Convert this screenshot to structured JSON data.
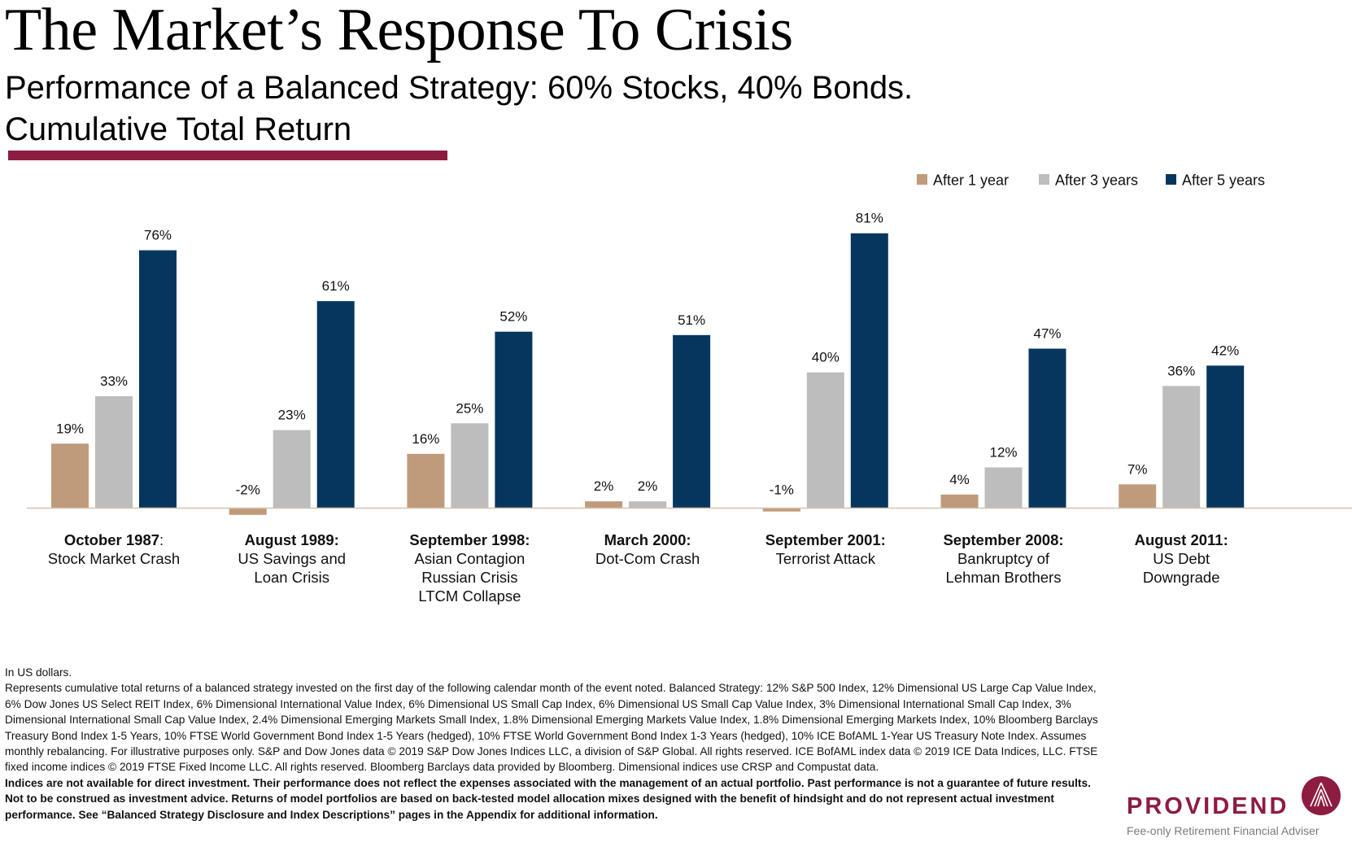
{
  "header": {
    "title": "The Market’s Response To Crisis",
    "subtitle_line1": "Performance of a Balanced Strategy: 60% Stocks, 40% Bonds.",
    "subtitle_line2": "Cumulative Total Return",
    "accent_color": "#8d1c40"
  },
  "chart_data": {
    "type": "bar",
    "categories": [
      {
        "bold": "October 1987",
        "bold_suffix": ":",
        "lines": [
          "Stock Market Crash"
        ]
      },
      {
        "bold": "August 1989:",
        "bold_suffix": "",
        "lines": [
          "US Savings and",
          "Loan Crisis"
        ]
      },
      {
        "bold": "September 1998:",
        "bold_suffix": "",
        "lines": [
          "Asian Contagion",
          "Russian Crisis",
          "LTCM Collapse"
        ]
      },
      {
        "bold": "March 2000:",
        "bold_suffix": "",
        "lines": [
          "Dot-Com Crash"
        ]
      },
      {
        "bold": "September 2001:",
        "bold_suffix": "",
        "lines": [
          "Terrorist Attack"
        ]
      },
      {
        "bold": "September 2008:",
        "bold_suffix": "",
        "lines": [
          "Bankruptcy of",
          "Lehman Brothers"
        ]
      },
      {
        "bold": "August 2011:",
        "bold_suffix": "",
        "lines": [
          "US Debt",
          "Downgrade"
        ]
      }
    ],
    "series": [
      {
        "name": "After 1 year",
        "color": "#c09b7b",
        "values": [
          19,
          -2,
          16,
          2,
          -1,
          4,
          7
        ],
        "labels": [
          "19%",
          "-2%",
          "16%",
          "2%",
          "-1%",
          "4%",
          "7%"
        ]
      },
      {
        "name": "After 3 years",
        "color": "#bdbdbd",
        "values": [
          33,
          23,
          25,
          2,
          40,
          12,
          36
        ],
        "labels": [
          "33%",
          "23%",
          "25%",
          "2%",
          "40%",
          "12%",
          "36%"
        ]
      },
      {
        "name": "After 5 years",
        "color": "#06365e",
        "values": [
          76,
          61,
          52,
          51,
          81,
          47,
          42
        ],
        "labels": [
          "76%",
          "61%",
          "52%",
          "51%",
          "81%",
          "47%",
          "42%"
        ]
      }
    ],
    "legend_position": "top-right",
    "grid": false
  },
  "footnotes": {
    "currency_note": "In US dollars.",
    "methodology": "Represents cumulative total returns of a balanced strategy invested on the first day of the following calendar month of the event noted. Balanced Strategy: 12% S&P 500 Index, 12% Dimensional US Large Cap Value Index, 6% Dow Jones US Select REIT Index, 6% Dimensional International Value Index, 6% Dimensional US Small Cap Index, 6% Dimensional US Small Cap Value Index, 3% Dimensional International Small Cap Index, 3% Dimensional International Small Cap Value Index, 2.4% Dimensional Emerging Markets Small Index, 1.8% Dimensional Emerging Markets Value Index, 1.8% Dimensional Emerging Markets Index, 10% Bloomberg Barclays Treasury Bond Index 1-5 Years, 10% FTSE World Government Bond Index 1-5 Years (hedged), 10% FTSE World Government Bond Index 1-3 Years (hedged), 10% ICE BofAML 1-Year US Treasury Note Index. Assumes monthly rebalancing. For illustrative purposes only. S&P and Dow Jones data © 2019 S&P Dow Jones Indices LLC, a division of S&P Global. All rights reserved. ICE BofAML index data © 2019 ICE Data Indices, LLC. FTSE fixed income indices © 2019 FTSE Fixed Income LLC. All rights reserved. Bloomberg Barclays data provided by Bloomberg. Dimensional indices use CRSP and Compustat data.",
    "disclaimer": "Indices are not available for direct investment. Their performance does not reflect the expenses associated with the management of an actual portfolio. Past performance is not a guarantee of future results. Not to be construed as investment advice. Returns of model portfolios are based on back-tested model allocation mixes designed with the benefit of hindsight and do not represent actual investment performance. See “Balanced Strategy Disclosure and Index Descriptions” pages in the Appendix for additional information."
  },
  "logo": {
    "wordmark": "PROVIDEND",
    "tagline": "Fee-only Retirement Financial Adviser",
    "icon": "providend-peak-icon",
    "color": "#8d1c40"
  }
}
